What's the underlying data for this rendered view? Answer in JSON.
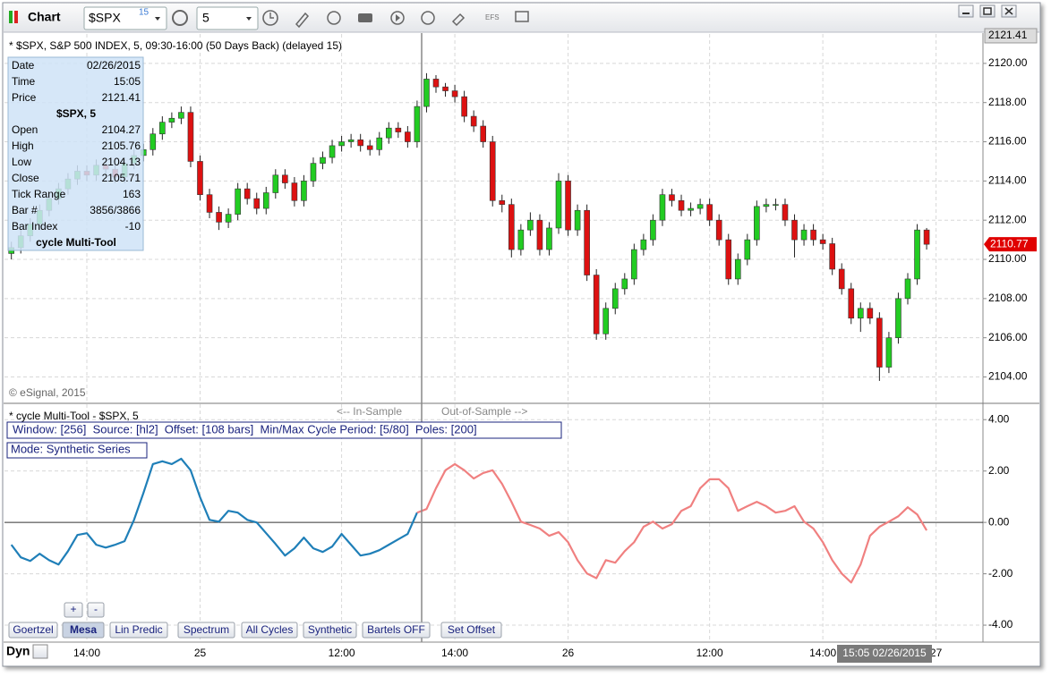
{
  "window": {
    "title": "Chart",
    "symbol": "$SPX",
    "delay": "15",
    "interval": "5",
    "efs": "EFS"
  },
  "info_panel": {
    "rows": [
      {
        "label": "Date",
        "value": "02/26/2015"
      },
      {
        "label": "Time",
        "value": "15:05"
      },
      {
        "label": "Price",
        "value": 2121.41
      },
      {
        "heading": "$SPX, 5"
      },
      {
        "label": "Open",
        "value": 2104.27
      },
      {
        "label": "High",
        "value": 2105.76
      },
      {
        "label": "Low",
        "value": 2104.13
      },
      {
        "label": "Close",
        "value": 2105.71
      },
      {
        "label": "Tick Range",
        "value": 163
      },
      {
        "label": "Bar #",
        "value": "3856/3866"
      },
      {
        "label": "Bar Index",
        "value": -10
      },
      {
        "heading": "cycle Multi-Tool"
      }
    ]
  },
  "copyright": "© eSignal, 2015",
  "indicator_panel": {
    "params": "Window: [256]  Source: [hl2]  Offset: [108 bars]  Min/Max Cycle Period: [5/80]  Poles: [200]",
    "mode": "Mode: Synthetic Series",
    "zoom_buttons": [
      "+",
      "-"
    ],
    "buttons": [
      "Goertzel",
      "Mesa",
      "Lin Predic",
      "Spectrum",
      "All Cycles",
      "Synthetic",
      "Bartels OFF",
      "Set Offset"
    ],
    "active_button": "Mesa"
  },
  "status": {
    "mode": "Dyn",
    "crosshair_time": "15:05 02/26/2015"
  },
  "chart_data": [
    {
      "type": "candlestick",
      "title": "* $SPX, S&P 500 INDEX, 5, 09:30-16:00 (50 Days Back) (delayed 15)",
      "color_up": "#22cc22",
      "color_down": "#dd1111",
      "open": [
        2110.3,
        2110.6,
        2111.2,
        2111.8,
        2112.5,
        2113.1,
        2113.6,
        2114.1,
        2114.5,
        2114.3,
        2114.8,
        2114.6,
        2114.2,
        2114.9,
        2115.3,
        2115.6,
        2116.4,
        2117.0,
        2117.2,
        2117.5,
        2115.0,
        2113.3,
        2112.4,
        2111.9,
        2112.3,
        2113.6,
        2113.1,
        2112.6,
        2113.4,
        2114.3,
        2113.9,
        2113.0,
        2114.0,
        2114.9,
        2115.2,
        2115.8,
        2116.0,
        2116.1,
        2115.8,
        2115.6,
        2116.2,
        2116.7,
        2116.5,
        2116.0,
        2117.8,
        2119.2,
        2118.8,
        2118.6,
        2118.3,
        2117.3,
        2116.8,
        2116.0,
        2113.0,
        2112.8,
        2110.5,
        2111.5,
        2112.0,
        2110.5,
        2111.6,
        2114.0,
        2111.5,
        2112.5,
        2109.2,
        2106.2,
        2107.5,
        2108.5,
        2109.0,
        2110.5,
        2111.0,
        2112.0,
        2113.3,
        2113.0,
        2112.5,
        2112.6,
        2112.8,
        2112.0,
        2111.0,
        2109.0,
        2110.0,
        2111.0,
        2112.7,
        2112.8,
        2112.8,
        2112.0,
        2111.0,
        2111.5,
        2111.0,
        2110.8,
        2109.5,
        2108.5,
        2107.0,
        2107.5,
        2107.0,
        2104.5,
        2106.0,
        2108.0,
        2109.0,
        2111.5
      ],
      "high": [
        2110.9,
        2111.5,
        2112.1,
        2112.8,
        2113.4,
        2113.9,
        2114.4,
        2114.8,
        2114.8,
        2115.1,
        2115.1,
        2114.9,
        2115.2,
        2115.6,
        2115.9,
        2116.7,
        2117.3,
        2117.5,
        2117.8,
        2117.8,
        2115.3,
        2113.6,
        2112.7,
        2112.6,
        2113.9,
        2113.9,
        2113.4,
        2113.7,
        2114.6,
        2114.6,
        2114.2,
        2114.3,
        2115.2,
        2115.5,
        2116.1,
        2116.3,
        2116.4,
        2116.4,
        2116.1,
        2116.5,
        2117.0,
        2117.0,
        2116.8,
        2118.1,
        2119.5,
        2119.4,
        2119.0,
        2118.9,
        2118.6,
        2117.6,
        2117.1,
        2116.3,
        2113.3,
        2113.1,
        2111.8,
        2112.4,
        2112.3,
        2111.9,
        2114.4,
        2114.3,
        2112.8,
        2112.8,
        2109.5,
        2107.8,
        2108.8,
        2109.3,
        2110.8,
        2111.3,
        2112.3,
        2113.6,
        2113.6,
        2113.3,
        2112.9,
        2113.1,
        2113.1,
        2112.3,
        2111.3,
        2110.3,
        2111.3,
        2113.0,
        2113.1,
        2113.1,
        2113.1,
        2112.3,
        2111.8,
        2111.8,
        2111.3,
        2111.1,
        2109.8,
        2108.8,
        2107.8,
        2107.8,
        2107.3,
        2106.3,
        2108.3,
        2109.3,
        2111.8,
        2111.6
      ],
      "low": [
        2110.0,
        2110.3,
        2110.9,
        2111.5,
        2112.2,
        2112.8,
        2113.3,
        2113.8,
        2114.0,
        2114.0,
        2114.3,
        2113.9,
        2113.9,
        2114.6,
        2115.0,
        2115.3,
        2116.1,
        2116.7,
        2116.9,
        2114.7,
        2113.0,
        2112.1,
        2111.5,
        2111.6,
        2112.0,
        2112.8,
        2112.3,
        2112.3,
        2113.1,
        2113.6,
        2112.7,
        2112.7,
        2113.7,
        2114.6,
        2114.9,
        2115.5,
        2115.7,
        2115.5,
        2115.3,
        2115.3,
        2115.9,
        2116.2,
        2115.7,
        2115.7,
        2117.5,
        2118.5,
        2118.3,
        2118.0,
        2117.0,
        2116.5,
        2115.7,
        2112.7,
        2112.4,
        2110.1,
        2110.2,
        2111.2,
        2110.2,
        2110.2,
        2111.3,
        2111.2,
        2111.2,
        2108.9,
        2105.9,
        2105.9,
        2107.2,
        2108.2,
        2108.7,
        2110.2,
        2110.7,
        2111.7,
        2112.7,
        2112.2,
        2112.2,
        2112.3,
        2111.7,
        2110.7,
        2108.7,
        2108.7,
        2109.7,
        2110.7,
        2112.4,
        2112.5,
        2111.7,
        2110.1,
        2110.7,
        2110.7,
        2110.5,
        2109.2,
        2108.2,
        2106.7,
        2106.3,
        2106.7,
        2103.8,
        2104.2,
        2105.7,
        2107.7,
        2108.7,
        2110.5
      ],
      "close": [
        2110.6,
        2111.2,
        2111.8,
        2112.5,
        2113.1,
        2113.6,
        2114.1,
        2114.5,
        2114.3,
        2114.8,
        2114.6,
        2114.2,
        2114.9,
        2115.3,
        2115.6,
        2116.4,
        2117.0,
        2117.2,
        2117.5,
        2115.0,
        2113.3,
        2112.4,
        2111.9,
        2112.3,
        2113.6,
        2113.1,
        2112.6,
        2113.4,
        2114.3,
        2113.9,
        2113.0,
        2114.0,
        2114.9,
        2115.2,
        2115.8,
        2116.0,
        2116.1,
        2115.8,
        2115.6,
        2116.2,
        2116.7,
        2116.5,
        2116.0,
        2117.8,
        2119.2,
        2118.8,
        2118.6,
        2118.3,
        2117.3,
        2116.8,
        2116.0,
        2113.0,
        2112.8,
        2110.5,
        2111.5,
        2112.0,
        2110.5,
        2111.6,
        2114.0,
        2111.5,
        2112.5,
        2109.2,
        2106.2,
        2107.5,
        2108.5,
        2109.0,
        2110.5,
        2111.0,
        2112.0,
        2113.3,
        2113.0,
        2112.5,
        2112.6,
        2112.8,
        2112.0,
        2111.0,
        2109.0,
        2110.0,
        2111.0,
        2112.7,
        2112.8,
        2112.8,
        2112.0,
        2111.0,
        2111.5,
        2111.0,
        2110.8,
        2109.5,
        2108.5,
        2107.0,
        2107.5,
        2107.0,
        2104.5,
        2106.0,
        2108.0,
        2109.0,
        2111.5,
        2110.77
      ],
      "xlim": [
        -0.73,
        102.97
      ],
      "xticks": [
        {
          "value": 8,
          "label": "14:00"
        },
        {
          "value": 20,
          "label": "25"
        },
        {
          "value": 35,
          "label": "12:00"
        },
        {
          "value": 47,
          "label": "14:00"
        },
        {
          "value": 59,
          "label": "26"
        },
        {
          "value": 74,
          "label": "12:00"
        },
        {
          "value": 86,
          "label": "14:00"
        },
        {
          "value": 98,
          "label": "27"
        }
      ],
      "ylim": [
        2102.7,
        2121.5
      ],
      "yticks": [
        {
          "value": 2104,
          "label": "2104.00"
        },
        {
          "value": 2106,
          "label": "2106.00"
        },
        {
          "value": 2108,
          "label": "2108.00"
        },
        {
          "value": 2110,
          "label": "2110.00"
        },
        {
          "value": 2112,
          "label": "2112.00"
        },
        {
          "value": 2114,
          "label": "2114.00"
        },
        {
          "value": 2116,
          "label": "2116.00"
        },
        {
          "value": 2118,
          "label": "2118.00"
        },
        {
          "value": 2120,
          "label": "2120.00"
        }
      ],
      "grid": true,
      "crosshair_price": 2121.41,
      "last_price": 2110.77
    },
    {
      "type": "line",
      "title": "* cycle Multi-Tool - $SPX, 5",
      "xlim": [
        -0.73,
        102.97
      ],
      "ylim": [
        -4.66,
        4.6
      ],
      "yticks": [
        {
          "value": -4,
          "label": "-4.00"
        },
        {
          "value": -2,
          "label": "-2.00"
        },
        {
          "value": 0,
          "label": "0.00"
        },
        {
          "value": 2,
          "label": "2.00"
        },
        {
          "value": 4,
          "label": "4.00"
        }
      ],
      "grid": true,
      "series": [
        {
          "name": "<-- In-Sample",
          "color": "#1f7fb8",
          "values": [
            -0.87,
            -1.36,
            -1.5,
            -1.22,
            -1.47,
            -1.64,
            -1.12,
            -0.49,
            -0.42,
            -0.87,
            -0.98,
            -0.87,
            -0.73,
            0.1,
            1.15,
            2.27,
            2.38,
            2.27,
            2.48,
            2.03,
            0.98,
            0.1,
            0.03,
            0.45,
            0.38,
            0.1,
            0,
            -0.42,
            -0.84,
            -1.29,
            -1.01,
            -0.59,
            -1.01,
            -1.15,
            -0.94,
            -0.45,
            -0.87,
            -1.29,
            -1.22,
            -1.08,
            -0.87,
            -0.66,
            -0.45,
            0.38,
            null,
            null,
            null,
            null,
            null,
            null,
            null,
            null,
            null,
            null,
            null,
            null,
            null,
            null,
            null,
            null,
            null,
            null,
            null,
            null,
            null,
            null,
            null,
            null,
            null,
            null,
            null,
            null,
            null,
            null,
            null,
            null,
            null,
            null,
            null,
            null,
            null,
            null,
            null,
            null,
            null,
            null,
            null,
            null,
            null,
            null,
            null,
            null,
            null,
            null,
            null,
            null,
            null,
            null
          ]
        },
        {
          "name": "Out-of-Sample -->",
          "color": "#f08080",
          "values": [
            null,
            null,
            null,
            null,
            null,
            null,
            null,
            null,
            null,
            null,
            null,
            null,
            null,
            null,
            null,
            null,
            null,
            null,
            null,
            null,
            null,
            null,
            null,
            null,
            null,
            null,
            null,
            null,
            null,
            null,
            null,
            null,
            null,
            null,
            null,
            null,
            null,
            null,
            null,
            null,
            null,
            null,
            null,
            0.38,
            0.52,
            1.33,
            2.03,
            2.27,
            2.03,
            1.71,
            1.92,
            2.03,
            1.5,
            0.8,
            0.03,
            -0.1,
            -0.24,
            -0.52,
            -0.38,
            -0.77,
            -1.47,
            -1.99,
            -2.17,
            -1.47,
            -1.57,
            -1.12,
            -0.77,
            -0.17,
            0.03,
            -0.24,
            -0.07,
            0.45,
            0.63,
            1.33,
            1.68,
            1.68,
            1.33,
            0.45,
            0.63,
            0.8,
            0.63,
            0.38,
            0.45,
            0.63,
            0.03,
            -0.24,
            -0.77,
            -1.47,
            -1.99,
            -2.34,
            -1.64,
            -0.52,
            -0.17,
            0.03,
            0.24,
            0.59,
            0.31,
            -0.31
          ]
        }
      ]
    }
  ]
}
